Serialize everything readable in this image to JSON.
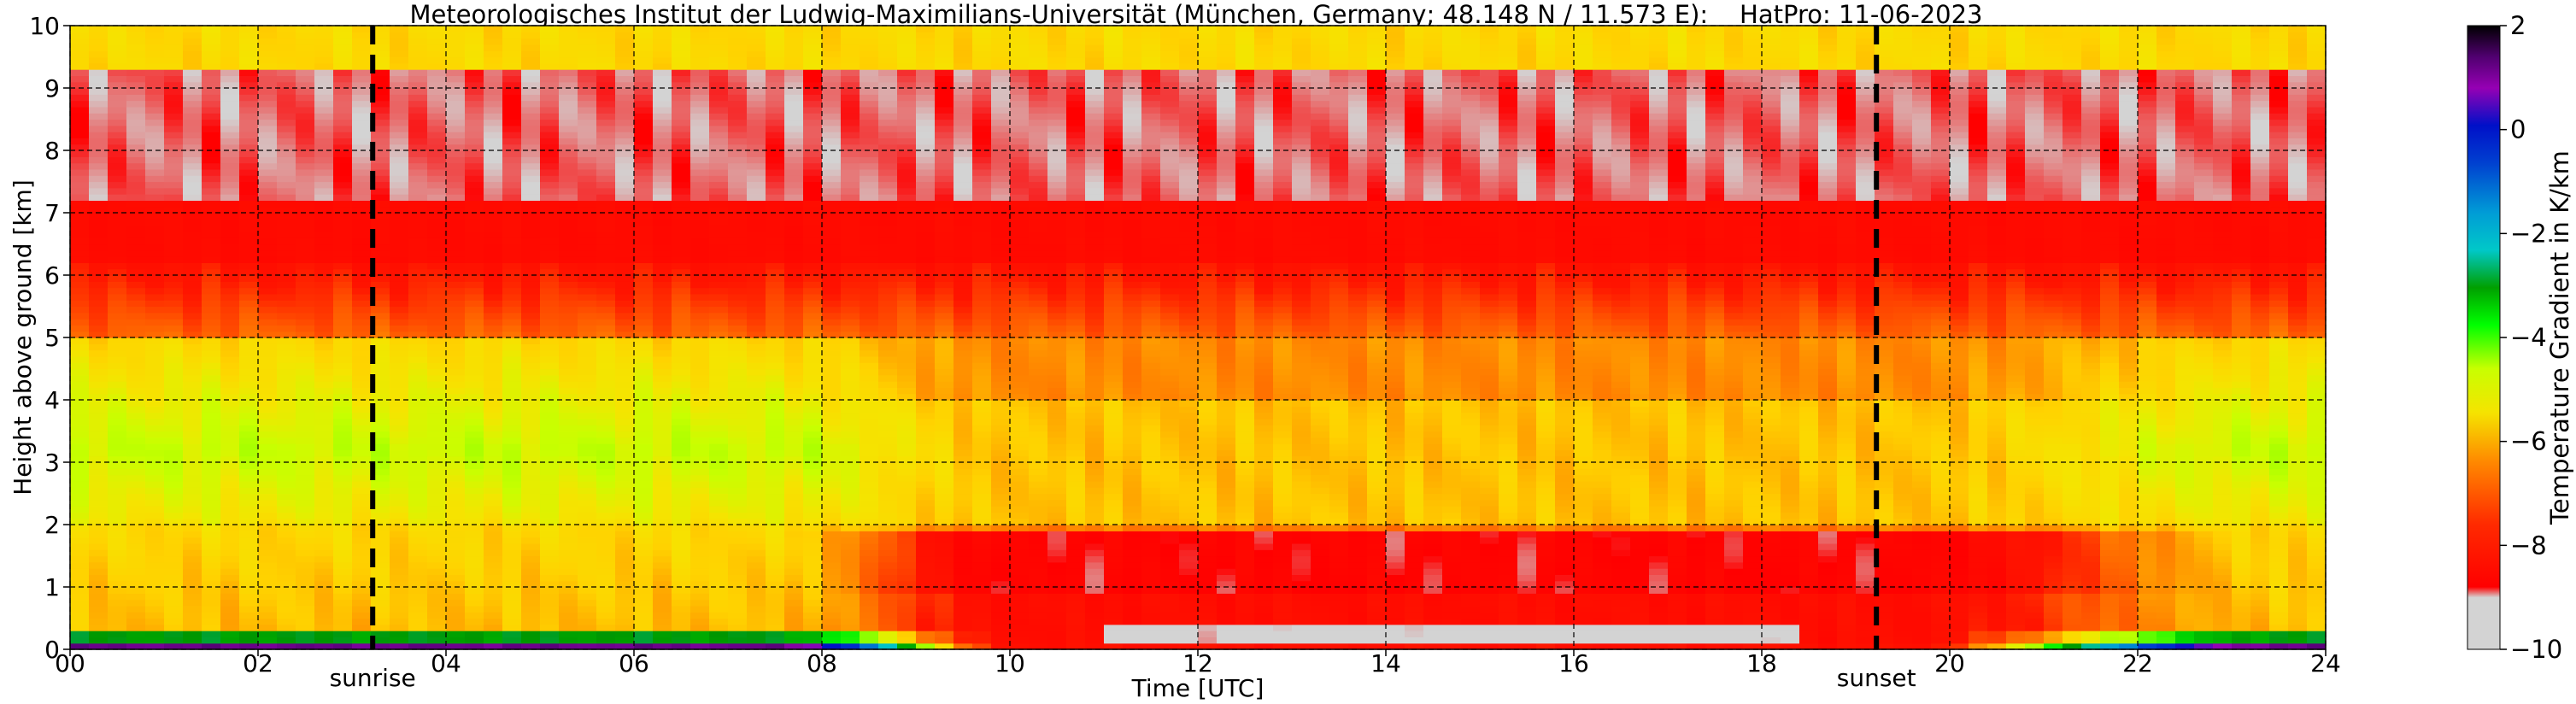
{
  "chart_data": {
    "type": "heatmap",
    "title": "Meteorologisches Institut der Ludwig-Maximilians-Universität (München, Germany; 48.148 N / 11.573 E):    HatPro: 11-06-2023",
    "xlabel": "Time [UTC]",
    "ylabel": "Height above ground [km]",
    "xlim": [
      0,
      24
    ],
    "ylim": [
      0,
      10
    ],
    "x_ticks": [
      "00",
      "02",
      "04",
      "06",
      "08",
      "10",
      "12",
      "14",
      "16",
      "18",
      "20",
      "22",
      "24"
    ],
    "y_ticks": [
      "0",
      "1",
      "2",
      "3",
      "4",
      "5",
      "6",
      "7",
      "8",
      "9",
      "10"
    ],
    "grid": "dashed",
    "colorbar": {
      "label": "Temperature Gradient in K/km",
      "range": [
        -10,
        2
      ],
      "ticks": [
        "−10",
        "−8",
        "−6",
        "−4",
        "−2",
        "0",
        "2"
      ],
      "colors": [
        "#d3d3d3",
        "#ff0000",
        "#ff6a00",
        "#f5e400",
        "#c8ff00",
        "#00e000",
        "#009cd6",
        "#0010c8",
        "#9600b4",
        "#000000"
      ]
    },
    "events": [
      {
        "name": "sunrise",
        "x": 3.22
      },
      {
        "name": "sunset",
        "x": 19.22
      }
    ],
    "approx_field_K_per_km": [
      {
        "height_km": [
          0,
          0.3
        ],
        "value": -4,
        "note": "near-surface band, night"
      },
      {
        "height_km": [
          0,
          0.4
        ],
        "value": -10,
        "note": "10-19 UTC surface"
      },
      {
        "height_km": [
          0.3,
          2.0
        ],
        "value": -7,
        "note": "night"
      },
      {
        "height_km": [
          0.4,
          1.9
        ],
        "value": -8.5,
        "note": "daytime mixed layer"
      },
      {
        "height_km": [
          2.0,
          5.0
        ],
        "value": -6,
        "note": "night"
      },
      {
        "height_km": [
          2.0,
          5.0
        ],
        "value": -7,
        "note": "day"
      },
      {
        "height_km": [
          5.0,
          6.2
        ],
        "value": -7.5
      },
      {
        "height_km": [
          6.2,
          9.3
        ],
        "value": -8.7
      },
      {
        "height_km": [
          9.3,
          10.0
        ],
        "value": -6.5
      }
    ]
  }
}
